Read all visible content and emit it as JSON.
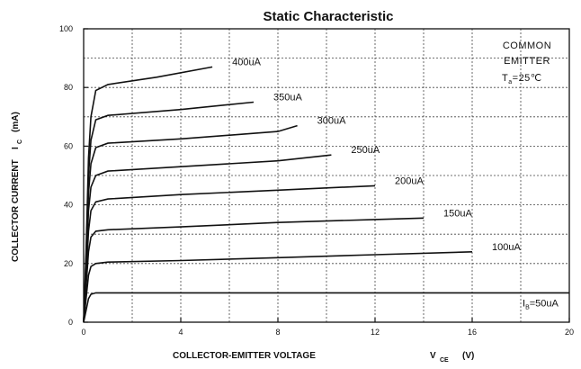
{
  "chart_data": {
    "type": "line",
    "title": "Static Characteristic",
    "xlabel": "COLLECTOR-EMITTER VOLTAGE",
    "xlabel_symbol": "V",
    "xlabel_sub": "CE",
    "xlabel_unit": "(V)",
    "ylabel": "COLLECTOR CURRENT",
    "ylabel_symbol": "I",
    "ylabel_sub": "C",
    "ylabel_unit": "(mA)",
    "xlim": [
      0,
      20
    ],
    "ylim": [
      0,
      100
    ],
    "xticks": [
      0,
      4,
      8,
      12,
      16,
      20
    ],
    "yticks": [
      0,
      20,
      40,
      60,
      80,
      100
    ],
    "grid": true,
    "annotation": {
      "lines": [
        "COMMON",
        "EMITTER"
      ],
      "temp_symbol": "T",
      "temp_sub": "a",
      "temp_value": "=25℃"
    },
    "series": [
      {
        "name": "I_B=50uA",
        "label_prefix": "I",
        "label_sub": "B",
        "label_text": "=50uA",
        "x": [
          0,
          0.1,
          0.2,
          0.3,
          0.5,
          1,
          4,
          8,
          12,
          16,
          20
        ],
        "y": [
          0,
          4,
          8,
          9.5,
          10,
          10,
          10,
          10,
          10,
          10,
          10
        ]
      },
      {
        "name": "100uA",
        "label_text": "100uA",
        "x": [
          0,
          0.1,
          0.2,
          0.3,
          0.5,
          1,
          4,
          8,
          12,
          16
        ],
        "y": [
          0,
          8,
          16,
          19,
          20,
          20.5,
          21,
          22,
          23,
          24
        ]
      },
      {
        "name": "150uA",
        "label_text": "150uA",
        "x": [
          0,
          0.1,
          0.2,
          0.3,
          0.5,
          1,
          4,
          8,
          12,
          14
        ],
        "y": [
          0,
          12,
          24,
          29,
          31,
          31.5,
          32.5,
          34,
          35,
          35.5
        ]
      },
      {
        "name": "200uA",
        "label_text": "200uA",
        "x": [
          0,
          0.1,
          0.2,
          0.3,
          0.5,
          1,
          4,
          8,
          12
        ],
        "y": [
          0,
          15,
          31,
          38,
          41,
          42,
          43.5,
          45,
          46.5
        ]
      },
      {
        "name": "250uA",
        "label_text": "250uA",
        "x": [
          0,
          0.1,
          0.2,
          0.3,
          0.5,
          1,
          4,
          8,
          10.2
        ],
        "y": [
          0,
          18,
          38,
          46,
          50,
          51.5,
          53,
          55,
          57
        ]
      },
      {
        "name": "300uA",
        "label_text": "300uA",
        "x": [
          0,
          0.1,
          0.2,
          0.3,
          0.5,
          1,
          4,
          8,
          8.8
        ],
        "y": [
          0,
          20,
          44,
          54,
          59.5,
          61,
          62.5,
          65,
          67
        ]
      },
      {
        "name": "350uA",
        "label_text": "350uA",
        "x": [
          0,
          0.1,
          0.2,
          0.3,
          0.5,
          1,
          4,
          7
        ],
        "y": [
          0,
          22,
          50,
          62,
          69,
          70.5,
          72.5,
          75
        ]
      },
      {
        "name": "400uA",
        "label_text": "400uA",
        "x": [
          0,
          0.1,
          0.2,
          0.3,
          0.5,
          1,
          3,
          5.3
        ],
        "y": [
          0,
          24,
          56,
          70,
          79,
          81,
          83.5,
          87
        ]
      }
    ]
  }
}
